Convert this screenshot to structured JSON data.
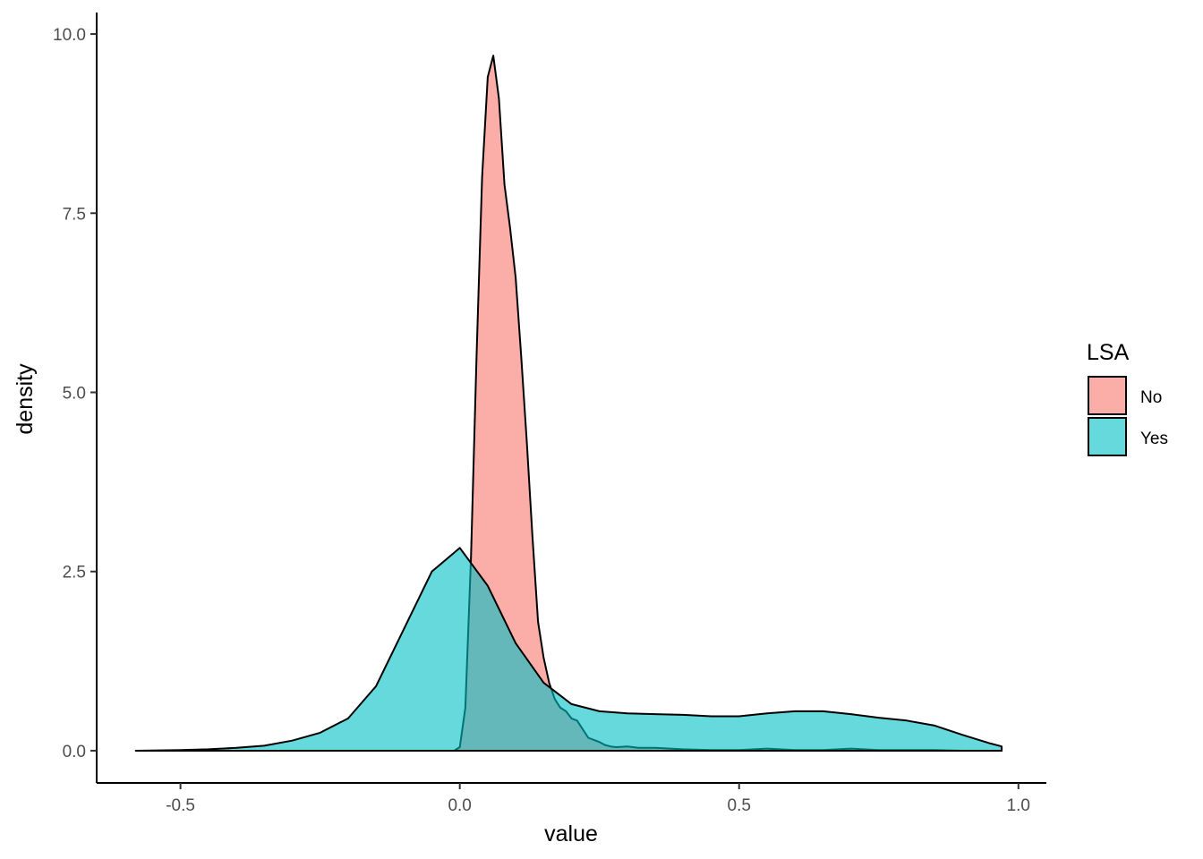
{
  "chart_data": {
    "type": "area",
    "subtype": "density",
    "xlabel": "value",
    "ylabel": "density",
    "xlim": [
      -0.65,
      1.05
    ],
    "ylim": [
      -0.45,
      10.3
    ],
    "xticks": [
      -0.5,
      0.0,
      0.5,
      1.0
    ],
    "xtick_labels": [
      "-0.5",
      "0.0",
      "0.5",
      "1.0"
    ],
    "yticks": [
      0.0,
      2.5,
      5.0,
      7.5,
      10.0
    ],
    "ytick_labels": [
      "0.0",
      "2.5",
      "5.0",
      "7.5",
      "10.0"
    ],
    "grid": false,
    "legend": {
      "title": "LSA",
      "placement": "right",
      "items": [
        {
          "label": "No",
          "color": "#F8766D"
        },
        {
          "label": "Yes",
          "color": "#00BFC4"
        }
      ]
    },
    "fill_alpha": 0.6,
    "series": [
      {
        "name": "No",
        "color": "#F8766D",
        "x": [
          -0.01,
          0.0,
          0.01,
          0.02,
          0.03,
          0.04,
          0.05,
          0.06,
          0.07,
          0.08,
          0.09,
          0.1,
          0.11,
          0.12,
          0.13,
          0.14,
          0.15,
          0.16,
          0.17,
          0.18,
          0.19,
          0.2,
          0.21,
          0.22,
          0.23,
          0.24,
          0.25,
          0.26,
          0.27,
          0.28,
          0.3,
          0.32,
          0.35,
          0.4,
          0.45,
          0.5,
          0.55,
          0.6,
          0.65,
          0.7,
          0.75,
          0.8,
          0.85,
          0.9,
          0.97
        ],
        "y": [
          0.0,
          0.05,
          0.6,
          2.7,
          5.5,
          8.0,
          9.4,
          9.7,
          9.1,
          7.9,
          7.3,
          6.6,
          5.5,
          4.3,
          3.0,
          1.8,
          1.3,
          0.95,
          0.72,
          0.6,
          0.55,
          0.45,
          0.42,
          0.3,
          0.18,
          0.15,
          0.12,
          0.08,
          0.06,
          0.05,
          0.06,
          0.04,
          0.04,
          0.02,
          0.01,
          0.01,
          0.03,
          0.01,
          0.01,
          0.03,
          0.01,
          0.01,
          0.01,
          0.0,
          0.0
        ]
      },
      {
        "name": "Yes",
        "color": "#00BFC4",
        "x": [
          -0.58,
          -0.5,
          -0.45,
          -0.4,
          -0.35,
          -0.3,
          -0.25,
          -0.2,
          -0.15,
          -0.1,
          -0.05,
          0.0,
          0.05,
          0.1,
          0.15,
          0.2,
          0.25,
          0.3,
          0.35,
          0.4,
          0.45,
          0.5,
          0.55,
          0.6,
          0.65,
          0.7,
          0.75,
          0.8,
          0.85,
          0.9,
          0.95,
          0.97
        ],
        "y": [
          0.0,
          0.01,
          0.02,
          0.04,
          0.07,
          0.14,
          0.25,
          0.45,
          0.9,
          1.7,
          2.5,
          2.83,
          2.3,
          1.5,
          0.95,
          0.65,
          0.55,
          0.52,
          0.51,
          0.5,
          0.48,
          0.48,
          0.52,
          0.55,
          0.55,
          0.51,
          0.46,
          0.42,
          0.35,
          0.22,
          0.1,
          0.06
        ]
      }
    ]
  }
}
